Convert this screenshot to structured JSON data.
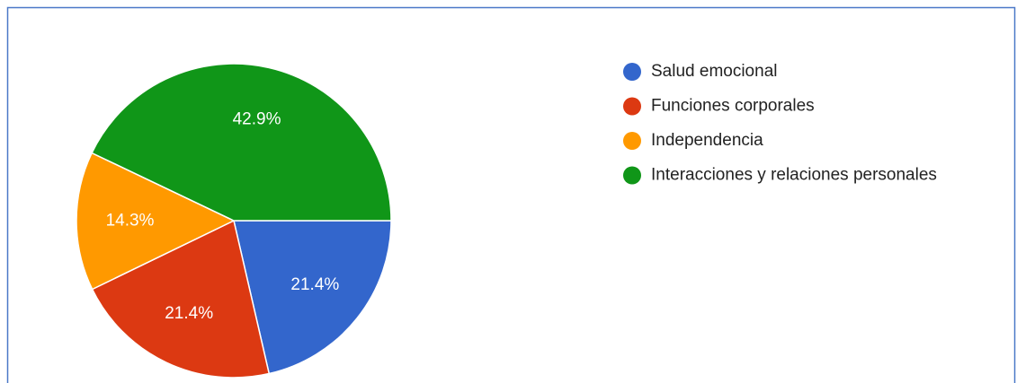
{
  "chart_data": {
    "type": "pie",
    "categories": [
      "Salud emocional",
      "Funciones corporales",
      "Independencia",
      "Interacciones y relaciones personales"
    ],
    "values": [
      21.4,
      21.4,
      14.3,
      42.9
    ],
    "value_labels": [
      "21.4%",
      "21.4%",
      "14.3%",
      "42.9%"
    ],
    "colors": [
      "#3366cc",
      "#dc3912",
      "#ff9900",
      "#109618"
    ],
    "legend": "right"
  }
}
